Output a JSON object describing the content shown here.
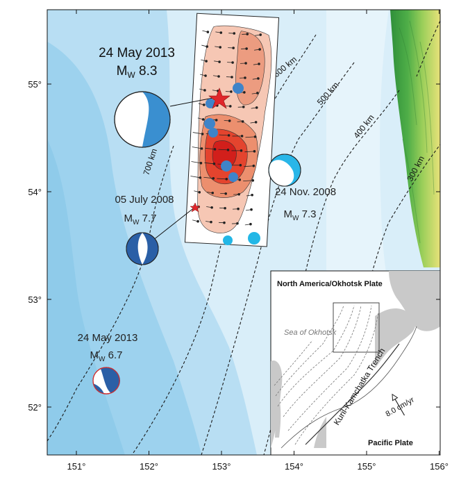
{
  "axes": {
    "lat_ticks": [
      {
        "label": "55°",
        "value": 55
      },
      {
        "label": "54°",
        "value": 54
      },
      {
        "label": "53°",
        "value": 53
      },
      {
        "label": "52°",
        "value": 52
      }
    ],
    "lon_ticks": [
      {
        "label": "151°",
        "value": 151
      },
      {
        "label": "152°",
        "value": 152
      },
      {
        "label": "153°",
        "value": 153
      },
      {
        "label": "154°",
        "value": 154
      },
      {
        "label": "155°",
        "value": 155
      },
      {
        "label": "156°",
        "value": 156
      }
    ]
  },
  "depth_contours": [
    {
      "label": "700 km"
    },
    {
      "label": "600 km"
    },
    {
      "label": "500 km"
    },
    {
      "label": "400 km"
    },
    {
      "label": "300 km"
    }
  ],
  "events": {
    "main": {
      "date": "24 May 2013",
      "magnitude": "8.3",
      "mag_prefix": "M",
      "mag_sub": "W",
      "marker": "red-star"
    },
    "e2008_july": {
      "date": "05 July 2008",
      "magnitude": "7.7",
      "mag_prefix": "M",
      "mag_sub": "W"
    },
    "e2008_nov": {
      "date": "24 Nov. 2008",
      "magnitude": "7.3",
      "mag_prefix": "M",
      "mag_sub": "W"
    },
    "e2013_small": {
      "date": "24 May 2013",
      "magnitude": "6.7",
      "mag_prefix": "M",
      "mag_sub": "W"
    }
  },
  "inset": {
    "plate_north": "North America/Okhotsk Plate",
    "sea": "Sea of Okhotsk",
    "trench": "Kuril-Kamchatka Trench",
    "velocity": "8.0 cm/yr",
    "plate_south": "Pacific Plate"
  },
  "colors": {
    "ocean_deep": "#8fcbea",
    "ocean_mid": "#b8def3",
    "ocean_light": "#d9eef9",
    "land_green": "#3f9e43",
    "land_yellow": "#e6e27a",
    "slip_low": "#f6c7b4",
    "slip_mid": "#ec8f6e",
    "slip_high": "#e4442e",
    "slip_max": "#d21f1b",
    "aftershock_blue": "#3f84c9",
    "aftershock_cyan": "#23b7e6",
    "beachball_blue": "#3a8fd0",
    "beachball_navy": "#2a5fa6",
    "star_red": "#e0262b"
  }
}
